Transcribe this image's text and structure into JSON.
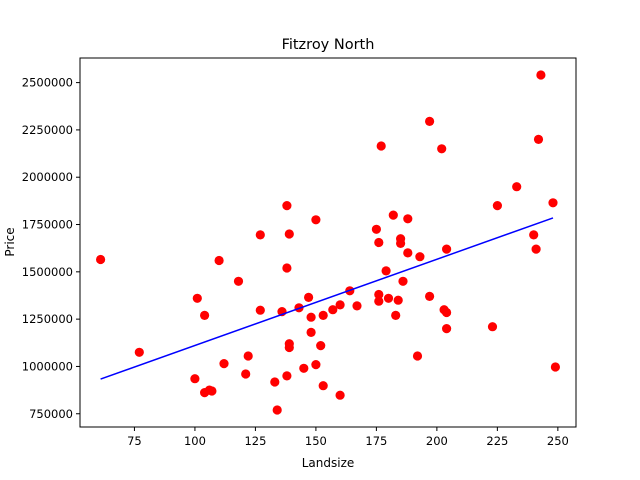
{
  "chart_data": {
    "type": "scatter",
    "title": "Fitzroy North",
    "xlabel": "Landsize",
    "ylabel": "Price",
    "xlim": [
      52.5,
      257.5
    ],
    "ylim": [
      680000,
      2630000
    ],
    "xticks": [
      75,
      100,
      125,
      150,
      175,
      200,
      225,
      250
    ],
    "yticks": [
      750000,
      1000000,
      1250000,
      1500000,
      1750000,
      2000000,
      2250000,
      2500000
    ],
    "grid": false,
    "point_color": "#ff0000",
    "line_color": "#0000ff",
    "points": [
      {
        "x": 61,
        "y": 1565000
      },
      {
        "x": 77,
        "y": 1075000
      },
      {
        "x": 100,
        "y": 935000
      },
      {
        "x": 101,
        "y": 1360000
      },
      {
        "x": 104,
        "y": 1270000
      },
      {
        "x": 104,
        "y": 862000
      },
      {
        "x": 106,
        "y": 875000
      },
      {
        "x": 107,
        "y": 870000
      },
      {
        "x": 110,
        "y": 1560000
      },
      {
        "x": 112,
        "y": 1015000
      },
      {
        "x": 118,
        "y": 1450000
      },
      {
        "x": 121,
        "y": 960000
      },
      {
        "x": 122,
        "y": 1055000
      },
      {
        "x": 127,
        "y": 1695000
      },
      {
        "x": 127,
        "y": 1297000
      },
      {
        "x": 133,
        "y": 918000
      },
      {
        "x": 134,
        "y": 770000
      },
      {
        "x": 136,
        "y": 1290000
      },
      {
        "x": 138,
        "y": 1850000
      },
      {
        "x": 138,
        "y": 1520000
      },
      {
        "x": 138,
        "y": 950000
      },
      {
        "x": 139,
        "y": 1700000
      },
      {
        "x": 139,
        "y": 1120000
      },
      {
        "x": 139,
        "y": 1100000
      },
      {
        "x": 143,
        "y": 1310000
      },
      {
        "x": 145,
        "y": 990000
      },
      {
        "x": 147,
        "y": 1365000
      },
      {
        "x": 148,
        "y": 1260000
      },
      {
        "x": 148,
        "y": 1180000
      },
      {
        "x": 150,
        "y": 1775000
      },
      {
        "x": 150,
        "y": 1010000
      },
      {
        "x": 152,
        "y": 1110000
      },
      {
        "x": 153,
        "y": 1270000
      },
      {
        "x": 153,
        "y": 898000
      },
      {
        "x": 157,
        "y": 1300000
      },
      {
        "x": 160,
        "y": 1325000
      },
      {
        "x": 160,
        "y": 848000
      },
      {
        "x": 164,
        "y": 1400000
      },
      {
        "x": 167,
        "y": 1320000
      },
      {
        "x": 175,
        "y": 1725000
      },
      {
        "x": 176,
        "y": 1655000
      },
      {
        "x": 176,
        "y": 1380000
      },
      {
        "x": 176,
        "y": 1345000
      },
      {
        "x": 177,
        "y": 2165000
      },
      {
        "x": 179,
        "y": 1505000
      },
      {
        "x": 180,
        "y": 1360000
      },
      {
        "x": 182,
        "y": 1800000
      },
      {
        "x": 183,
        "y": 1270000
      },
      {
        "x": 184,
        "y": 1350000
      },
      {
        "x": 185,
        "y": 1675000
      },
      {
        "x": 185,
        "y": 1650000
      },
      {
        "x": 186,
        "y": 1450000
      },
      {
        "x": 188,
        "y": 1780000
      },
      {
        "x": 188,
        "y": 1600000
      },
      {
        "x": 192,
        "y": 1055000
      },
      {
        "x": 193,
        "y": 1580000
      },
      {
        "x": 197,
        "y": 2295000
      },
      {
        "x": 197,
        "y": 1370000
      },
      {
        "x": 202,
        "y": 2150000
      },
      {
        "x": 203,
        "y": 1300000
      },
      {
        "x": 204,
        "y": 1285000
      },
      {
        "x": 204,
        "y": 1620000
      },
      {
        "x": 204,
        "y": 1200000
      },
      {
        "x": 223,
        "y": 1210000
      },
      {
        "x": 225,
        "y": 1850000
      },
      {
        "x": 233,
        "y": 1950000
      },
      {
        "x": 240,
        "y": 1695000
      },
      {
        "x": 241,
        "y": 1620000
      },
      {
        "x": 242,
        "y": 2200000
      },
      {
        "x": 243,
        "y": 2540000
      },
      {
        "x": 248,
        "y": 1865000
      },
      {
        "x": 249,
        "y": 997000
      }
    ],
    "trendline": {
      "x": [
        61,
        248
      ],
      "y": [
        933000,
        1785000
      ]
    }
  }
}
